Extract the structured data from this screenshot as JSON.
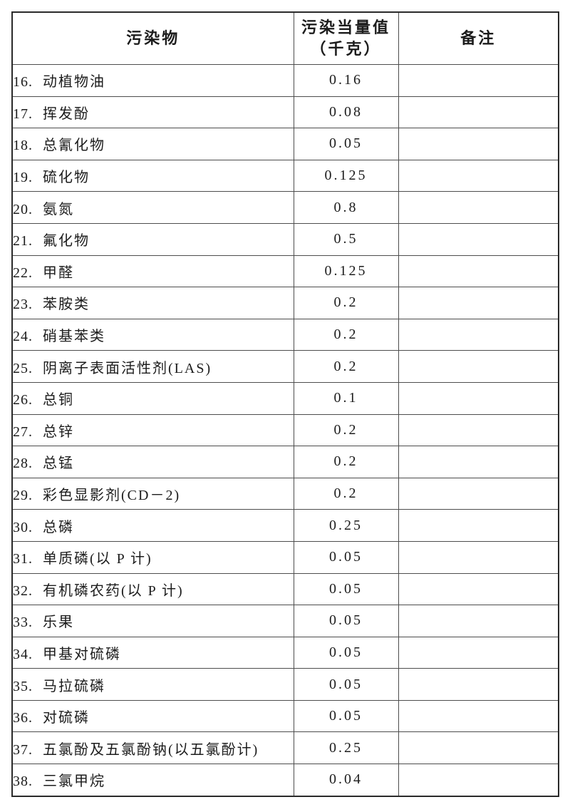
{
  "table": {
    "headers": {
      "pollutant": "污染物",
      "equiv_line1": "污染当量值",
      "equiv_line2": "（千克）",
      "remark": "备注"
    },
    "rows": [
      {
        "no": "16.",
        "name": "动植物油",
        "value": "0.16",
        "remark": ""
      },
      {
        "no": "17.",
        "name": "挥发酚",
        "value": "0.08",
        "remark": ""
      },
      {
        "no": "18.",
        "name": "总氰化物",
        "value": "0.05",
        "remark": ""
      },
      {
        "no": "19.",
        "name": "硫化物",
        "value": "0.125",
        "remark": ""
      },
      {
        "no": "20.",
        "name": "氨氮",
        "value": "0.8",
        "remark": ""
      },
      {
        "no": "21.",
        "name": "氟化物",
        "value": "0.5",
        "remark": ""
      },
      {
        "no": "22.",
        "name": "甲醛",
        "value": "0.125",
        "remark": ""
      },
      {
        "no": "23.",
        "name": "苯胺类",
        "value": "0.2",
        "remark": ""
      },
      {
        "no": "24.",
        "name": "硝基苯类",
        "value": "0.2",
        "remark": ""
      },
      {
        "no": "25.",
        "name": "阴离子表面活性剂(LAS)",
        "value": "0.2",
        "remark": ""
      },
      {
        "no": "26.",
        "name": "总铜",
        "value": "0.1",
        "remark": ""
      },
      {
        "no": "27.",
        "name": "总锌",
        "value": "0.2",
        "remark": ""
      },
      {
        "no": "28.",
        "name": "总锰",
        "value": "0.2",
        "remark": ""
      },
      {
        "no": "29.",
        "name": "彩色显影剂(CD－2)",
        "value": "0.2",
        "remark": ""
      },
      {
        "no": "30.",
        "name": "总磷",
        "value": "0.25",
        "remark": ""
      },
      {
        "no": "31.",
        "name": "单质磷(以 P 计)",
        "value": "0.05",
        "remark": ""
      },
      {
        "no": "32.",
        "name": "有机磷农药(以 P 计)",
        "value": "0.05",
        "remark": ""
      },
      {
        "no": "33.",
        "name": "乐果",
        "value": "0.05",
        "remark": ""
      },
      {
        "no": "34.",
        "name": "甲基对硫磷",
        "value": "0.05",
        "remark": ""
      },
      {
        "no": "35.",
        "name": "马拉硫磷",
        "value": "0.05",
        "remark": ""
      },
      {
        "no": "36.",
        "name": "对硫磷",
        "value": "0.05",
        "remark": ""
      },
      {
        "no": "37.",
        "name": "五氯酚及五氯酚钠(以五氯酚计)",
        "value": "0.25",
        "remark": ""
      },
      {
        "no": "38.",
        "name": "三氯甲烷",
        "value": "0.04",
        "remark": ""
      }
    ]
  },
  "colors": {
    "border_outer": "#2a2a2a",
    "border_inner": "#4d4d4d",
    "text": "#1c1c1c",
    "background": "#ffffff"
  }
}
